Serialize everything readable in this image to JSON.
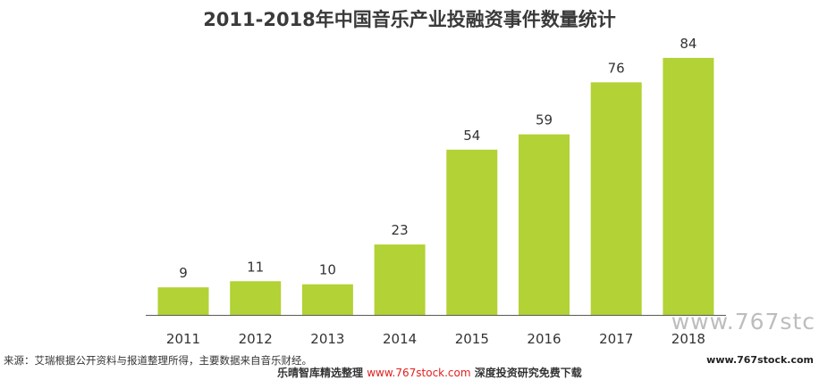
{
  "chart_data": {
    "type": "bar",
    "title": "2011-2018年中国音乐产业投融资事件数量统计",
    "categories": [
      "2011",
      "2012",
      "2013",
      "2014",
      "2015",
      "2016",
      "2017",
      "2018"
    ],
    "values": [
      9,
      11,
      10,
      23,
      54,
      59,
      76,
      84
    ],
    "bar_color": "#b2d235",
    "ylim": [
      0,
      100
    ],
    "grid": false,
    "data_labels": true
  },
  "footer": {
    "source": "来源：艾瑞根据公开资料与报道整理所得，主要数据来自音乐财经。",
    "watermark_large": "www.767stc",
    "watermark_small": "www.767stock.com",
    "banner_prefix": "乐晴智库精选整理",
    "banner_link": "www.767stock.com",
    "banner_suffix": "深度投资研究免费下载"
  }
}
